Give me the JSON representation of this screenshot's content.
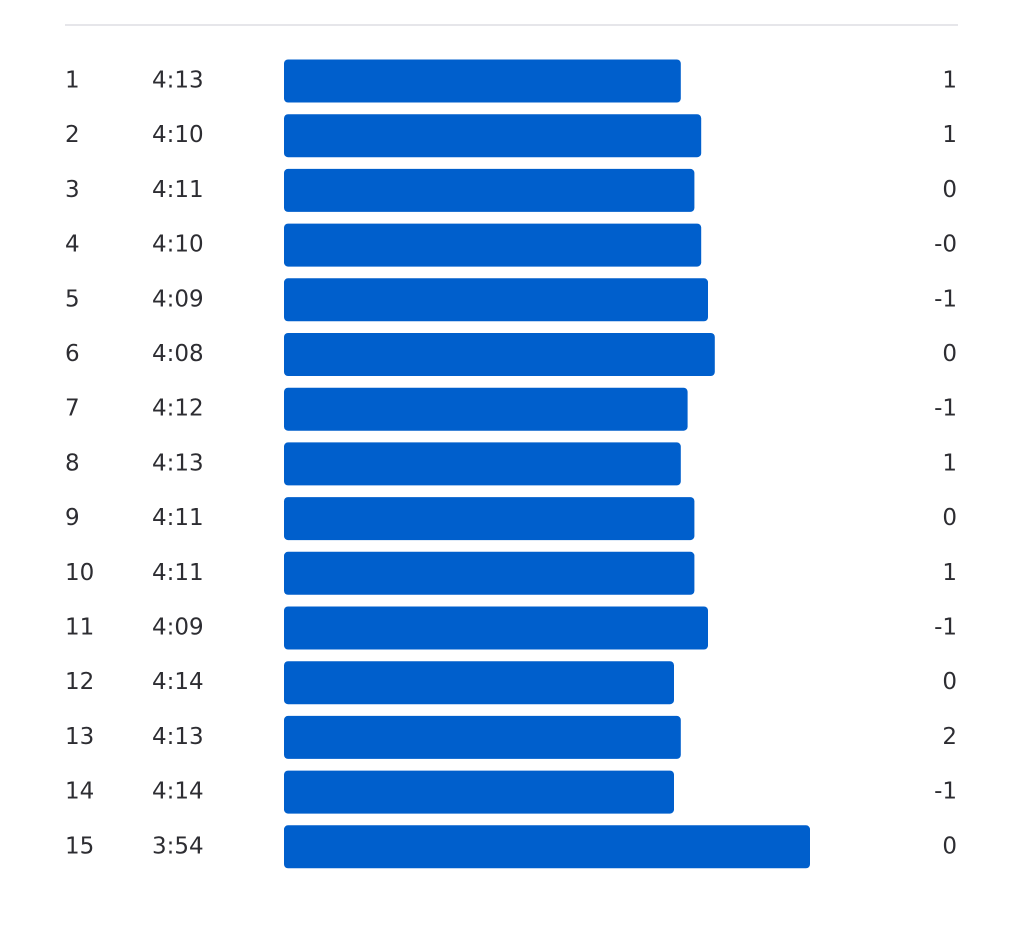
{
  "table": {
    "rows": [
      {
        "split": 1,
        "pace": {
          "value": 253,
          "label": "4:13"
        },
        "elevation": "1"
      },
      {
        "split": 2,
        "pace": {
          "value": 250,
          "label": "4:10"
        },
        "elevation": "1"
      },
      {
        "split": 3,
        "pace": {
          "value": 251,
          "label": "4:11"
        },
        "elevation": "0"
      },
      {
        "split": 4,
        "pace": {
          "value": 250,
          "label": "4:10"
        },
        "elevation": "-0"
      },
      {
        "split": 5,
        "pace": {
          "value": 249,
          "label": "4:09"
        },
        "elevation": "-1"
      },
      {
        "split": 6,
        "pace": {
          "value": 248,
          "label": "4:08"
        },
        "elevation": "0"
      },
      {
        "split": 7,
        "pace": {
          "value": 252,
          "label": "4:12"
        },
        "elevation": "-1"
      },
      {
        "split": 8,
        "pace": {
          "value": 253,
          "label": "4:13"
        },
        "elevation": "1"
      },
      {
        "split": 9,
        "pace": {
          "value": 251,
          "label": "4:11"
        },
        "elevation": "0"
      },
      {
        "split": 10,
        "pace": {
          "value": 251,
          "label": "4:11"
        },
        "elevation": "1"
      },
      {
        "split": 11,
        "pace": {
          "value": 249,
          "label": "4:09"
        },
        "elevation": "-1"
      },
      {
        "split": 12,
        "pace": {
          "value": 254,
          "label": "4:14"
        },
        "elevation": "0"
      },
      {
        "split": 13,
        "pace": {
          "value": 253,
          "label": "4:13"
        },
        "elevation": "2"
      },
      {
        "split": 14,
        "pace": {
          "value": 254,
          "label": "4:14"
        },
        "elevation": "-1"
      },
      {
        "split": 15,
        "pace": {
          "value": 234,
          "label": "3:54"
        },
        "elevation": "0"
      }
    ],
    "bar_color": "#005fcc"
  }
}
